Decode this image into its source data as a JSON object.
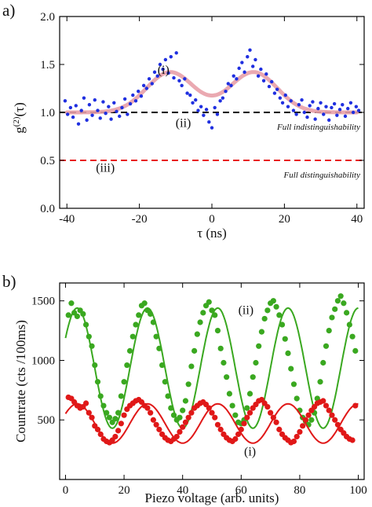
{
  "chart_data": [
    {
      "panel_label": "a)",
      "type": "scatter",
      "xlabel": "τ (ns)",
      "ylabel": "g(2)(τ)",
      "ylabel_base": "g",
      "ylabel_sup": "(2)",
      "ylabel_rest": "(τ)",
      "xlim": [
        -42,
        42
      ],
      "ylim": [
        0,
        2.0
      ],
      "xticks": [
        -40,
        -20,
        0,
        20,
        40
      ],
      "yticks": [
        0.0,
        0.5,
        1.0,
        1.5,
        2.0
      ],
      "ytick_labels": [
        "0.0",
        "0.5",
        "1.0",
        "1.5",
        "2.0"
      ],
      "grid": false,
      "colors": {
        "points": "#1f2fe0",
        "fit": "#e8a0a8",
        "indist": "#000000",
        "dist": "#e82020"
      },
      "fit": {
        "description_values": {
          "baseline": 1.0,
          "peak_amplitude": 0.42,
          "peak_centers_ns": [
            -11.5,
            11.5
          ],
          "peak_width_ns": 6.5,
          "dip_depth": 0.02
        }
      },
      "reference_lines": [
        {
          "y": 1.0,
          "style": "dashed",
          "label": "Full indistinguishability"
        },
        {
          "y": 0.5,
          "style": "dashed",
          "label": "Full distinguishability"
        }
      ],
      "annotations": [
        {
          "text": "(i)",
          "x": -15,
          "y": 1.4
        },
        {
          "text": "(ii)",
          "x": -10,
          "y": 0.85
        },
        {
          "text": "(iii)",
          "x": -32,
          "y": 0.38
        }
      ],
      "series": [
        {
          "x": [
            -40.5,
            -39.8,
            -39,
            -38.3,
            -37.5,
            -36.8,
            -36,
            -35.3,
            -34.5,
            -33.8,
            -33,
            -32.3,
            -31.5,
            -30.8,
            -30,
            -29.3,
            -28.5,
            -27.8,
            -27,
            -26.3,
            -25.5,
            -24.8,
            -24,
            -23.3,
            -22.5,
            -21.8,
            -21,
            -20.3,
            -19.5,
            -18.8,
            -18,
            -17.3,
            -16.5,
            -15.8,
            -15,
            -14.3,
            -13.5,
            -12.8,
            -12,
            -11.3,
            -10.5,
            -9.8,
            -9,
            -8.3,
            -7.5,
            -6.8,
            -6,
            -5.3,
            -4.5,
            -3.8,
            -3,
            -2.3,
            -1.5,
            -0.8,
            0,
            0.8,
            1.5,
            2.3,
            3,
            3.8,
            4.5,
            5.3,
            6,
            6.8,
            7.5,
            8.3,
            9,
            9.8,
            10.5,
            11.3,
            12,
            12.8,
            13.5,
            14.3,
            15,
            15.8,
            16.5,
            17.3,
            18,
            18.8,
            19.5,
            20.3,
            21,
            21.8,
            22.5,
            23.3,
            24,
            24.8,
            25.5,
            26.3,
            27,
            27.8,
            28.5,
            29.3,
            30,
            30.8,
            31.5,
            32.3,
            33,
            33.8,
            34.5,
            35.3,
            36,
            36.8,
            37.5,
            38.3,
            39,
            39.8,
            40.5
          ],
          "y": [
            1.12,
            0.98,
            1.05,
            0.95,
            1.07,
            0.88,
            1.02,
            1.15,
            0.92,
            1.08,
            0.97,
            1.13,
            1.02,
            0.94,
            1.11,
            0.99,
            1.06,
            0.93,
            1.1,
            1.01,
            0.96,
            1.05,
            1.14,
            0.98,
            1.09,
            1.18,
            1.12,
            1.22,
            1.17,
            1.28,
            1.25,
            1.35,
            1.3,
            1.42,
            1.38,
            1.5,
            1.45,
            1.55,
            1.41,
            1.58,
            1.36,
            1.62,
            1.33,
            1.28,
            1.35,
            1.2,
            1.18,
            1.1,
            1.13,
            1.02,
            1.06,
            0.97,
            1.03,
            0.9,
            0.84,
            1.05,
            0.98,
            1.12,
            1.15,
            1.22,
            1.3,
            1.28,
            1.38,
            1.35,
            1.46,
            1.52,
            1.42,
            1.58,
            1.65,
            1.48,
            1.55,
            1.38,
            1.45,
            1.33,
            1.4,
            1.27,
            1.32,
            1.2,
            1.24,
            1.15,
            1.1,
            1.18,
            1.06,
            1.12,
            1.02,
            0.98,
            1.08,
            1.13,
            1.0,
            0.95,
            1.07,
            1.11,
            0.93,
            1.04,
            1.1,
            0.98,
            1.06,
            0.92,
            1.05,
            1.09,
            0.97,
            1.03,
            1.08,
            0.96,
            1.04,
            1.1,
            1.0,
            1.06,
            1.02
          ]
        }
      ]
    },
    {
      "panel_label": "b)",
      "type": "scatter",
      "xlabel": "Piezo voltage (arb. units)",
      "ylabel": "Countrate (cts /100ms)",
      "xlim": [
        -2,
        102
      ],
      "ylim": [
        0,
        1650
      ],
      "xticks": [
        0,
        20,
        40,
        60,
        80,
        100
      ],
      "yticks": [
        500,
        1000,
        1500
      ],
      "grid": false,
      "colors": {
        "ii": "#3aa820",
        "i": "#e01818"
      },
      "annotations": [
        {
          "text": "(ii)",
          "x": 59,
          "y": 1390
        },
        {
          "text": "(i)",
          "x": 61,
          "y": 200
        }
      ],
      "series": [
        {
          "name": "(ii)",
          "fit": {
            "offset": 935,
            "amplitude": 505,
            "period": 24.0,
            "phase_peak": 4.0
          },
          "x": [
            1,
            2,
            3,
            4,
            5,
            6,
            7,
            8,
            9,
            10,
            11,
            12,
            13,
            14,
            15,
            16,
            17,
            18,
            19,
            20,
            21,
            22,
            23,
            24,
            25,
            26,
            27,
            28,
            29,
            30,
            31,
            32,
            33,
            34,
            35,
            36,
            37,
            38,
            39,
            40,
            41,
            42,
            43,
            44,
            45,
            46,
            47,
            48,
            49,
            50,
            51,
            52,
            53,
            54,
            55,
            56,
            57,
            58,
            59,
            60,
            61,
            62,
            63,
            64,
            65,
            66,
            67,
            68,
            69,
            70,
            71,
            72,
            73,
            74,
            75,
            76,
            77,
            78,
            79,
            80,
            81,
            82,
            83,
            84,
            85,
            86,
            87,
            88,
            89,
            90,
            91,
            92,
            93,
            94,
            95,
            96,
            97,
            98,
            99
          ],
          "y": [
            1380,
            1480,
            1400,
            1370,
            1420,
            1390,
            1300,
            1200,
            1120,
            960,
            820,
            700,
            620,
            560,
            520,
            480,
            510,
            560,
            700,
            820,
            960,
            1080,
            1200,
            1300,
            1380,
            1460,
            1480,
            1420,
            1390,
            1320,
            1200,
            1100,
            960,
            820,
            700,
            600,
            540,
            500,
            520,
            580,
            660,
            800,
            950,
            1080,
            1220,
            1320,
            1400,
            1460,
            1490,
            1420,
            1380,
            1250,
            1100,
            980,
            860,
            720,
            620,
            540,
            480,
            470,
            500,
            600,
            720,
            860,
            980,
            1120,
            1240,
            1350,
            1420,
            1480,
            1500,
            1450,
            1380,
            1300,
            1180,
            1060,
            930,
            800,
            680,
            580,
            520,
            490,
            460,
            500,
            560,
            680,
            820,
            980,
            1120,
            1250,
            1360,
            1430,
            1500,
            1540,
            1480,
            1400,
            1300,
            1200,
            1080
          ]
        },
        {
          "name": "(i)",
          "fit": {
            "offset": 470,
            "amplitude": 165,
            "period": 24.0,
            "phase_peak": 4.0
          },
          "x": [
            1,
            2,
            3,
            4,
            5,
            6,
            7,
            8,
            9,
            10,
            11,
            12,
            13,
            14,
            15,
            16,
            17,
            18,
            19,
            20,
            21,
            22,
            23,
            24,
            25,
            26,
            27,
            28,
            29,
            30,
            31,
            32,
            33,
            34,
            35,
            36,
            37,
            38,
            39,
            40,
            41,
            42,
            43,
            44,
            45,
            46,
            47,
            48,
            49,
            50,
            51,
            52,
            53,
            54,
            55,
            56,
            57,
            58,
            59,
            60,
            61,
            62,
            63,
            64,
            65,
            66,
            67,
            68,
            69,
            70,
            71,
            72,
            73,
            74,
            75,
            76,
            77,
            78,
            79,
            80,
            81,
            82,
            83,
            84,
            85,
            86,
            87,
            88,
            89,
            90,
            91,
            92,
            93,
            94,
            95,
            96,
            97,
            98,
            99
          ],
          "y": [
            690,
            680,
            650,
            620,
            600,
            610,
            640,
            560,
            520,
            450,
            420,
            380,
            340,
            320,
            310,
            330,
            360,
            410,
            470,
            540,
            590,
            620,
            640,
            660,
            670,
            650,
            620,
            600,
            560,
            500,
            460,
            420,
            380,
            350,
            330,
            320,
            340,
            360,
            400,
            440,
            480,
            520,
            560,
            600,
            620,
            640,
            650,
            630,
            600,
            560,
            520,
            460,
            420,
            380,
            350,
            330,
            320,
            340,
            380,
            420,
            470,
            520,
            560,
            600,
            630,
            660,
            670,
            640,
            610,
            560,
            520,
            480,
            420,
            380,
            350,
            330,
            310,
            320,
            360,
            400,
            450,
            500,
            540,
            580,
            610,
            640,
            650,
            660,
            620,
            580,
            540,
            500,
            460,
            420,
            390,
            360,
            340,
            330,
            620
          ]
        }
      ]
    }
  ]
}
